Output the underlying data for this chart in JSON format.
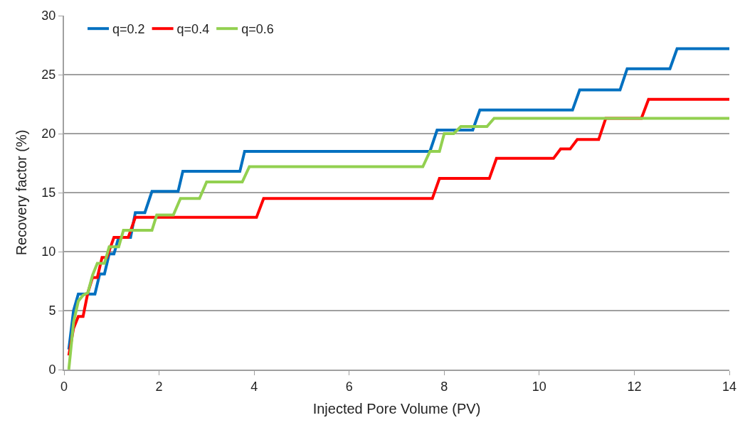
{
  "chart_data": {
    "type": "line",
    "xlabel": "Injected Pore Volume (PV)",
    "ylabel": "Recovery factor (%)",
    "xlim": [
      0,
      14
    ],
    "xticks": [
      0,
      2,
      4,
      6,
      8,
      10,
      12,
      14
    ],
    "ylim": [
      0,
      30
    ],
    "yticks": [
      0,
      5,
      10,
      15,
      20,
      25,
      30
    ],
    "grid": "y",
    "legend": "top left",
    "marker": "none",
    "line_style": "solid",
    "series": [
      {
        "name": "q=0.2",
        "color": "#0070c0",
        "x": [
          0.1,
          0.2,
          0.3,
          0.65,
          0.75,
          0.85,
          0.95,
          1.05,
          1.15,
          1.4,
          1.5,
          1.7,
          1.85,
          2.4,
          2.5,
          3.7,
          3.8,
          7.7,
          7.85,
          8.6,
          8.75,
          10.7,
          10.85,
          11.7,
          11.85,
          12.75,
          12.9,
          14
        ],
        "values": [
          1.7,
          5,
          6.4,
          6.4,
          8.1,
          8.1,
          9.8,
          9.8,
          11.2,
          11.2,
          13.3,
          13.3,
          15.1,
          15.1,
          16.8,
          16.8,
          18.5,
          18.5,
          20.3,
          20.3,
          22,
          22,
          23.7,
          23.7,
          25.5,
          25.5,
          27.2,
          27.2
        ]
      },
      {
        "name": "q=0.4",
        "color": "#ff0000",
        "x": [
          0.1,
          0.2,
          0.3,
          0.4,
          0.5,
          0.6,
          0.7,
          0.8,
          0.9,
          1.05,
          1.35,
          1.5,
          4.05,
          4.2,
          7.75,
          7.9,
          8.95,
          9.1,
          10.3,
          10.45,
          10.65,
          10.8,
          11.25,
          11.4,
          12.15,
          12.3,
          14
        ],
        "values": [
          1.2,
          3.5,
          4.5,
          4.5,
          6.5,
          7.8,
          7.8,
          9.5,
          9.5,
          11.2,
          11.2,
          12.9,
          12.9,
          14.5,
          14.5,
          16.2,
          16.2,
          17.9,
          17.9,
          18.7,
          18.7,
          19.5,
          19.5,
          21.3,
          21.3,
          22.9,
          22.9
        ]
      },
      {
        "name": "q=0.6",
        "color": "#92d050",
        "x": [
          0.1,
          0.2,
          0.3,
          0.4,
          0.5,
          0.6,
          0.7,
          0.85,
          0.95,
          1.15,
          1.25,
          1.85,
          1.95,
          2.3,
          2.45,
          2.85,
          3.0,
          3.75,
          3.9,
          7.55,
          7.7,
          7.9,
          8.0,
          8.2,
          8.35,
          8.9,
          9.05,
          14
        ],
        "values": [
          0,
          4,
          5.8,
          6.3,
          6.5,
          8,
          9,
          9,
          10.4,
          10.4,
          11.8,
          11.8,
          13.1,
          13.1,
          14.5,
          14.5,
          15.9,
          15.9,
          17.2,
          17.2,
          18.5,
          18.5,
          20,
          20,
          20.6,
          20.6,
          21.3,
          21.3
        ]
      }
    ]
  }
}
